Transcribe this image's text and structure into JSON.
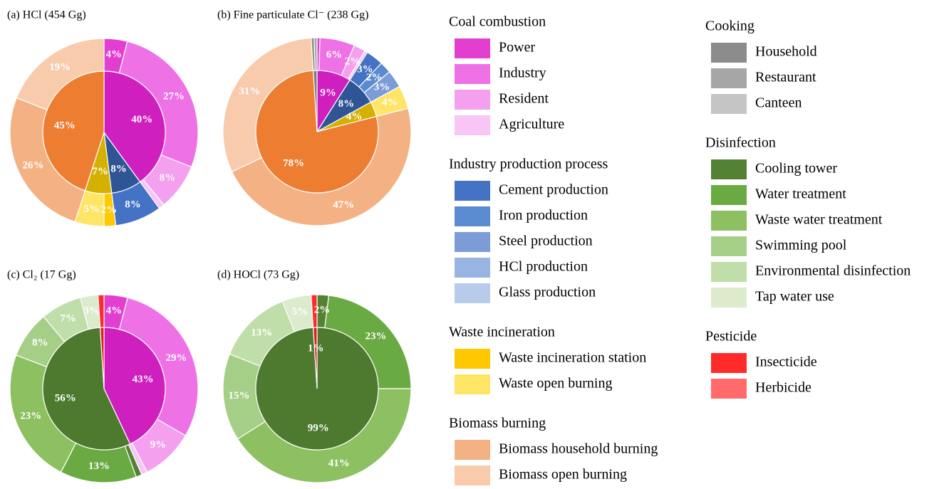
{
  "legend": {
    "groups": [
      {
        "name": "Coal combustion",
        "color": "#cf1fbf",
        "items": [
          {
            "name": "Power",
            "color": "#e23fd1"
          },
          {
            "name": "Industry",
            "color": "#ee72e6"
          },
          {
            "name": "Resident",
            "color": "#f4a0ef"
          },
          {
            "name": "Agriculture",
            "color": "#f8c6f5"
          }
        ]
      },
      {
        "name": "Industry production process",
        "color": "#2f5597",
        "items": [
          {
            "name": "Cement production",
            "color": "#4472c4"
          },
          {
            "name": "Iron production",
            "color": "#5a8ad0"
          },
          {
            "name": "Steel production",
            "color": "#7b9cd6"
          },
          {
            "name": "HCl production",
            "color": "#98b4e2"
          },
          {
            "name": "Glass production",
            "color": "#b9cbeb"
          }
        ]
      },
      {
        "name": "Waste incineration",
        "color": "#d4b000",
        "items": [
          {
            "name": "Waste incineration station",
            "color": "#ffc800"
          },
          {
            "name": "Waste open burning",
            "color": "#ffe566"
          }
        ]
      },
      {
        "name": "Biomass burning",
        "color": "#ed7d31",
        "items": [
          {
            "name": "Biomass household burning",
            "color": "#f4b183"
          },
          {
            "name": "Biomass open burning",
            "color": "#f8cbad"
          }
        ]
      },
      {
        "name": "Cooking",
        "color": "#7f7f7f",
        "items": [
          {
            "name": "Household",
            "color": "#8c8c8c"
          },
          {
            "name": "Restaurant",
            "color": "#a6a6a6"
          },
          {
            "name": "Canteen",
            "color": "#c5c5c5"
          }
        ]
      },
      {
        "name": "Disinfection",
        "color": "#4d7a2f",
        "items": [
          {
            "name": "Cooling tower",
            "color": "#548235"
          },
          {
            "name": "Water treatment",
            "color": "#6aaa42"
          },
          {
            "name": "Waste water treatment",
            "color": "#8cc060"
          },
          {
            "name": "Swimming pool",
            "color": "#a5cf86"
          },
          {
            "name": "Environmental disinfection",
            "color": "#c0deaa"
          },
          {
            "name": "Tap water use",
            "color": "#dbebcc"
          }
        ]
      },
      {
        "name": "Pesticide",
        "color": "#e31b1b",
        "items": [
          {
            "name": "Insecticide",
            "color": "#ff2a2a"
          },
          {
            "name": "Herbicide",
            "color": "#ff6b6b"
          }
        ]
      }
    ]
  },
  "chart_data": [
    {
      "type": "pie",
      "title": "(a) HCl (454 Gg)",
      "inner": {
        "values": [
          40,
          8,
          7,
          45,
          0,
          0,
          0
        ],
        "value_labels": [
          "40%",
          "8%",
          "7%",
          "45%",
          null,
          null,
          null
        ]
      },
      "outer": {
        "values": [
          4,
          27,
          8,
          1,
          8,
          0,
          0,
          0,
          0,
          2,
          5,
          26,
          19,
          0,
          0,
          0,
          0,
          0,
          0,
          0,
          0,
          0,
          0,
          0
        ],
        "value_labels": [
          "4%",
          "27%",
          "8%",
          null,
          "8%",
          null,
          null,
          null,
          null,
          "2%",
          "5%",
          "26%",
          "19%",
          null,
          null,
          null,
          null,
          null,
          null,
          null,
          null,
          null,
          null,
          null
        ]
      }
    },
    {
      "type": "pie",
      "title": "(b) Fine particulate Cl⁻ (238 Gg)",
      "inner": {
        "values": [
          9,
          8,
          4,
          78,
          1,
          0,
          0
        ],
        "value_labels": [
          "9%",
          "8%",
          "4%",
          "78%",
          null,
          null,
          null
        ]
      },
      "outer": {
        "values": [
          0.5,
          6,
          2,
          0.5,
          3,
          2,
          3,
          0,
          0,
          0,
          4,
          47,
          31,
          0.5,
          0.5,
          0,
          0,
          0,
          0,
          0,
          0,
          0,
          0,
          0
        ],
        "value_labels": [
          null,
          "6%",
          "2%",
          null,
          "3%",
          "2%",
          "3%",
          null,
          null,
          null,
          "4%",
          "47%",
          "31%",
          null,
          null,
          null,
          null,
          null,
          null,
          null,
          null,
          null,
          null,
          null
        ]
      }
    },
    {
      "type": "pie",
      "title": "(c) Cl₂ (17 Gg)",
      "inner": {
        "values": [
          43,
          0,
          0,
          0,
          0,
          56,
          1
        ],
        "value_labels": [
          "43%",
          null,
          null,
          null,
          null,
          "56%",
          null
        ]
      },
      "outer": {
        "values": [
          4,
          29,
          9,
          1,
          0,
          0,
          0,
          0,
          0,
          0,
          0,
          0,
          0,
          0,
          0,
          0,
          1,
          13,
          23,
          8,
          7,
          3,
          1,
          0
        ],
        "value_labels": [
          "4%",
          "29%",
          "9%",
          null,
          null,
          null,
          null,
          null,
          null,
          null,
          null,
          null,
          null,
          null,
          null,
          null,
          null,
          "13%",
          "23%",
          "8%",
          "7%",
          "3%",
          null,
          null
        ]
      }
    },
    {
      "type": "pie",
      "title": "(d) HOCl (73 Gg)",
      "inner": {
        "values": [
          0,
          0,
          0,
          0,
          0,
          99,
          1
        ],
        "value_labels": [
          null,
          null,
          null,
          null,
          null,
          "99%",
          "1%"
        ]
      },
      "outer": {
        "values": [
          0,
          0,
          0,
          0,
          0,
          0,
          0,
          0,
          0,
          0,
          0,
          0,
          0,
          0,
          0,
          0,
          2,
          23,
          41,
          15,
          13,
          5,
          1,
          0
        ],
        "value_labels": [
          null,
          null,
          null,
          null,
          null,
          null,
          null,
          null,
          null,
          null,
          null,
          null,
          null,
          null,
          null,
          null,
          "2%",
          "23%",
          "41%",
          "15%",
          "13%",
          "5%",
          null,
          null
        ]
      }
    }
  ]
}
